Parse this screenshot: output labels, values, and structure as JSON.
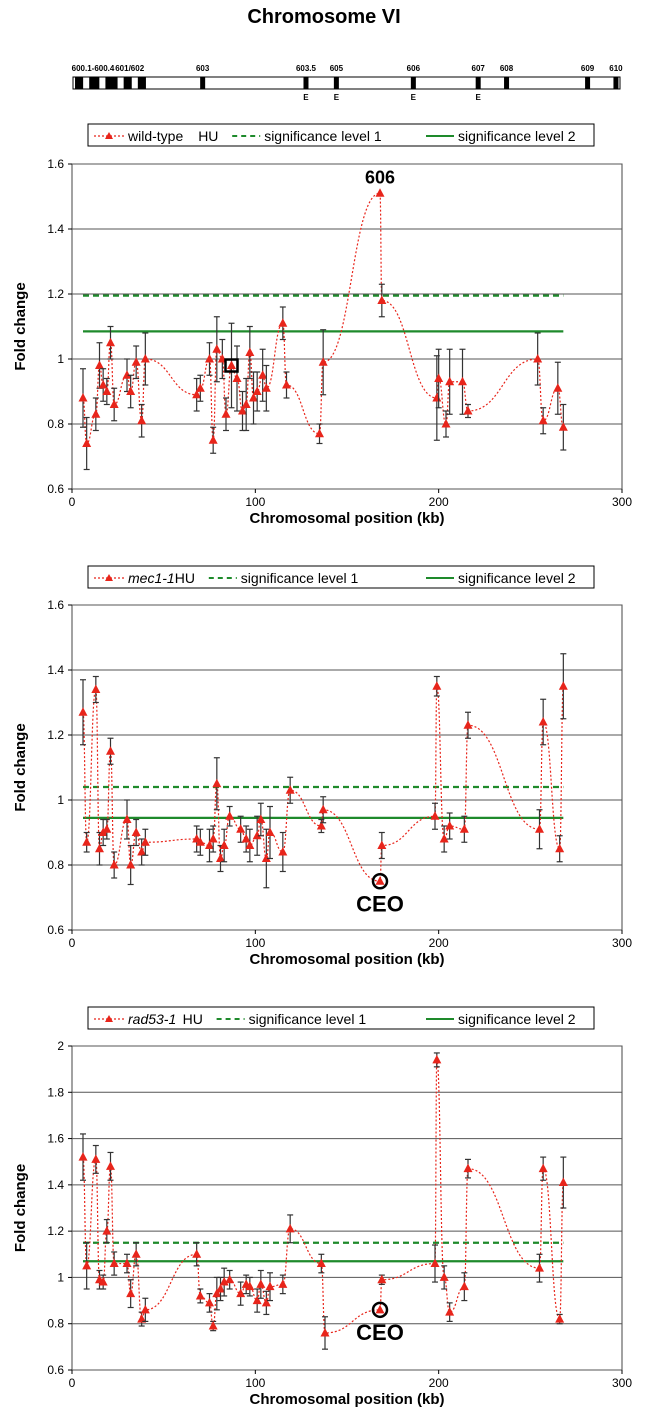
{
  "page": {
    "title": "Chromosome VI"
  },
  "chromosome_map": {
    "origins": [
      {
        "label": "600.1-600.4",
        "pos": 10
      },
      {
        "label": "601/602",
        "pos": 27
      },
      {
        "label": "603",
        "pos": 64
      },
      {
        "label": "603.5",
        "pos": 115,
        "efficient": true
      },
      {
        "label": "605",
        "pos": 130,
        "efficient": true
      },
      {
        "label": "606",
        "pos": 168,
        "efficient": true
      },
      {
        "label": "607",
        "pos": 200,
        "efficient": true
      },
      {
        "label": "608",
        "pos": 214
      },
      {
        "label": "609",
        "pos": 254
      },
      {
        "label": "610",
        "pos": 268
      }
    ],
    "efficient_marker": "E",
    "colors": {
      "block": "#000000",
      "outline": "#000000"
    }
  },
  "chart_data": [
    {
      "type": "scatter",
      "title": "",
      "legend": [
        {
          "name": "wild-type",
          "suffix": " HU",
          "italic": false,
          "style": "dotted-triangle"
        },
        {
          "name": "significance level 1",
          "style": "dashed-green"
        },
        {
          "name": "significance level 2",
          "style": "solid-green"
        }
      ],
      "legend_position": "top",
      "xlabel": "Chromosomal position (kb)",
      "ylabel": "Fold change",
      "xlim": [
        0,
        300
      ],
      "xticks": [
        0,
        100,
        200,
        300
      ],
      "ylim": [
        0.6,
        1.6
      ],
      "yticks": [
        0.6,
        0.8,
        1.0,
        1.2,
        1.4,
        1.6
      ],
      "ytick_labels": [
        "0.6",
        "0.8",
        "1",
        "1.2",
        "1.4",
        "1.6"
      ],
      "grid": "horizontal",
      "significance_level_1": 1.195,
      "significance_level_2": 1.085,
      "sig_x_range": [
        6,
        268
      ],
      "series": [
        {
          "x": 6,
          "y": 0.88,
          "err": 0.09
        },
        {
          "x": 8,
          "y": 0.74,
          "err": 0.08
        },
        {
          "x": 13,
          "y": 0.83,
          "err": 0.05
        },
        {
          "x": 15,
          "y": 0.98,
          "err": 0.07
        },
        {
          "x": 17,
          "y": 0.92,
          "err": 0.05
        },
        {
          "x": 19,
          "y": 0.9,
          "err": 0.04
        },
        {
          "x": 21,
          "y": 1.05,
          "err": 0.05
        },
        {
          "x": 23,
          "y": 0.86,
          "err": 0.05
        },
        {
          "x": 30,
          "y": 0.95,
          "err": 0.05
        },
        {
          "x": 32,
          "y": 0.9,
          "err": 0.05
        },
        {
          "x": 35,
          "y": 0.99,
          "err": 0.05
        },
        {
          "x": 38,
          "y": 0.81,
          "err": 0.05
        },
        {
          "x": 40,
          "y": 1.0,
          "err": 0.08
        },
        {
          "x": 68,
          "y": 0.89,
          "err": 0.05
        },
        {
          "x": 70,
          "y": 0.91,
          "err": 0.04
        },
        {
          "x": 75,
          "y": 1.0,
          "err": 0.05
        },
        {
          "x": 77,
          "y": 0.75,
          "err": 0.04
        },
        {
          "x": 79,
          "y": 1.03,
          "err": 0.1
        },
        {
          "x": 82,
          "y": 1.0,
          "err": 0.06
        },
        {
          "x": 84,
          "y": 0.83,
          "err": 0.05
        },
        {
          "x": 87,
          "y": 0.98,
          "err": 0.13
        },
        {
          "x": 90,
          "y": 0.94,
          "err": 0.1
        },
        {
          "x": 93,
          "y": 0.84,
          "err": 0.06
        },
        {
          "x": 95,
          "y": 0.86,
          "err": 0.08
        },
        {
          "x": 97,
          "y": 1.02,
          "err": 0.08
        },
        {
          "x": 99,
          "y": 0.88,
          "err": 0.08
        },
        {
          "x": 101,
          "y": 0.9,
          "err": 0.06
        },
        {
          "x": 104,
          "y": 0.95,
          "err": 0.08
        },
        {
          "x": 106,
          "y": 0.91,
          "err": 0.07
        },
        {
          "x": 115,
          "y": 1.11,
          "err": 0.05
        },
        {
          "x": 117,
          "y": 0.92,
          "err": 0.04
        },
        {
          "x": 135,
          "y": 0.77,
          "err": 0.03
        },
        {
          "x": 137,
          "y": 0.99,
          "err": 0.1
        },
        {
          "x": 168,
          "y": 1.51,
          "err": 0
        },
        {
          "x": 169,
          "y": 1.18,
          "err": 0.05
        },
        {
          "x": 199,
          "y": 0.88,
          "err": 0.13
        },
        {
          "x": 200,
          "y": 0.94,
          "err": 0.09
        },
        {
          "x": 204,
          "y": 0.8,
          "err": 0.04
        },
        {
          "x": 206,
          "y": 0.93,
          "err": 0.1
        },
        {
          "x": 213,
          "y": 0.93,
          "err": 0.1
        },
        {
          "x": 216,
          "y": 0.84,
          "err": 0.02
        },
        {
          "x": 254,
          "y": 1.0,
          "err": 0.08
        },
        {
          "x": 257,
          "y": 0.81,
          "err": 0.04
        },
        {
          "x": 265,
          "y": 0.91,
          "err": 0.08
        },
        {
          "x": 268,
          "y": 0.79,
          "err": 0.07
        }
      ],
      "annotation": {
        "text": "606",
        "x": 168,
        "y": 1.51,
        "marker": "square",
        "marker_x": 87,
        "marker_y": 0.98
      },
      "colors": {
        "series": "#e8251b",
        "sig": "#1e8a2b",
        "grid": "#555555"
      }
    },
    {
      "type": "scatter",
      "title": "",
      "legend": [
        {
          "name": "mec1-1",
          "suffix": " HU",
          "italic": true,
          "style": "dotted-triangle"
        },
        {
          "name": "significance level 1",
          "style": "dashed-green"
        },
        {
          "name": "significance level 2",
          "style": "solid-green"
        }
      ],
      "legend_position": "top",
      "xlabel": "Chromosomal position (kb)",
      "ylabel": "Fold change",
      "xlim": [
        0,
        300
      ],
      "xticks": [
        0,
        100,
        200,
        300
      ],
      "ylim": [
        0.6,
        1.6
      ],
      "yticks": [
        0.6,
        0.8,
        1.0,
        1.2,
        1.4,
        1.6
      ],
      "ytick_labels": [
        "0.6",
        "0.8",
        "1",
        "1.2",
        "1.4",
        "1.6"
      ],
      "grid": "horizontal",
      "significance_level_1": 1.04,
      "significance_level_2": 0.945,
      "sig_x_range": [
        6,
        268
      ],
      "series": [
        {
          "x": 6,
          "y": 1.27,
          "err": 0.1
        },
        {
          "x": 8,
          "y": 0.87,
          "err": 0.03
        },
        {
          "x": 13,
          "y": 1.34,
          "err": 0.04
        },
        {
          "x": 15,
          "y": 0.85,
          "err": 0.05
        },
        {
          "x": 17,
          "y": 0.9,
          "err": 0.04
        },
        {
          "x": 19,
          "y": 0.91,
          "err": 0.03
        },
        {
          "x": 21,
          "y": 1.15,
          "err": 0.04
        },
        {
          "x": 23,
          "y": 0.8,
          "err": 0.04
        },
        {
          "x": 30,
          "y": 0.94,
          "err": 0.06
        },
        {
          "x": 32,
          "y": 0.8,
          "err": 0.06
        },
        {
          "x": 35,
          "y": 0.9,
          "err": 0.04
        },
        {
          "x": 38,
          "y": 0.84,
          "err": 0.04
        },
        {
          "x": 40,
          "y": 0.87,
          "err": 0.04
        },
        {
          "x": 68,
          "y": 0.88,
          "err": 0.04
        },
        {
          "x": 70,
          "y": 0.87,
          "err": 0.04
        },
        {
          "x": 75,
          "y": 0.86,
          "err": 0.05
        },
        {
          "x": 77,
          "y": 0.88,
          "err": 0.04
        },
        {
          "x": 79,
          "y": 1.05,
          "err": 0.08
        },
        {
          "x": 81,
          "y": 0.82,
          "err": 0.04
        },
        {
          "x": 83,
          "y": 0.86,
          "err": 0.05
        },
        {
          "x": 86,
          "y": 0.95,
          "err": 0.03
        },
        {
          "x": 92,
          "y": 0.91,
          "err": 0.04
        },
        {
          "x": 95,
          "y": 0.88,
          "err": 0.04
        },
        {
          "x": 97,
          "y": 0.86,
          "err": 0.05
        },
        {
          "x": 101,
          "y": 0.89,
          "err": 0.06
        },
        {
          "x": 103,
          "y": 0.94,
          "err": 0.05
        },
        {
          "x": 106,
          "y": 0.82,
          "err": 0.09
        },
        {
          "x": 108,
          "y": 0.9,
          "err": 0.08
        },
        {
          "x": 115,
          "y": 0.84,
          "err": 0.06
        },
        {
          "x": 119,
          "y": 1.03,
          "err": 0.04
        },
        {
          "x": 136,
          "y": 0.92,
          "err": 0.02
        },
        {
          "x": 137,
          "y": 0.97,
          "err": 0.04
        },
        {
          "x": 168,
          "y": 0.75,
          "err": 0
        },
        {
          "x": 169,
          "y": 0.86,
          "err": 0.04
        },
        {
          "x": 198,
          "y": 0.95,
          "err": 0.04
        },
        {
          "x": 199,
          "y": 1.35,
          "err": 0.03
        },
        {
          "x": 203,
          "y": 0.88,
          "err": 0.04
        },
        {
          "x": 206,
          "y": 0.92,
          "err": 0.04
        },
        {
          "x": 214,
          "y": 0.91,
          "err": 0.04
        },
        {
          "x": 216,
          "y": 1.23,
          "err": 0.04
        },
        {
          "x": 255,
          "y": 0.91,
          "err": 0.06
        },
        {
          "x": 257,
          "y": 1.24,
          "err": 0.07
        },
        {
          "x": 266,
          "y": 0.85,
          "err": 0.04
        },
        {
          "x": 268,
          "y": 1.35,
          "err": 0.1
        }
      ],
      "annotation": {
        "text": "CEO",
        "x": 168,
        "y": 0.75,
        "marker": "circle"
      },
      "colors": {
        "series": "#e8251b",
        "sig": "#1e8a2b",
        "grid": "#555555"
      }
    },
    {
      "type": "scatter",
      "title": "",
      "legend": [
        {
          "name": "rad53-1",
          "suffix": " HU",
          "italic": true,
          "style": "dotted-triangle"
        },
        {
          "name": "significance level 1",
          "style": "dashed-green"
        },
        {
          "name": "significance level 2",
          "style": "solid-green"
        }
      ],
      "legend_position": "top",
      "xlabel": "Chromosomal position (kb)",
      "ylabel": "Fold change",
      "xlim": [
        0,
        300
      ],
      "xticks": [
        0,
        100,
        200,
        300
      ],
      "ylim": [
        0.6,
        2.0
      ],
      "yticks": [
        0.6,
        0.8,
        1.0,
        1.2,
        1.4,
        1.6,
        1.8,
        2.0
      ],
      "ytick_labels": [
        "0.6",
        "0.8",
        "1",
        "1.2",
        "1.4",
        "1.6",
        "1.8",
        "2"
      ],
      "grid": "horizontal",
      "significance_level_1": 1.15,
      "significance_level_2": 1.07,
      "sig_x_range": [
        6,
        268
      ],
      "series": [
        {
          "x": 6,
          "y": 1.52,
          "err": 0.1
        },
        {
          "x": 8,
          "y": 1.05,
          "err": 0.1
        },
        {
          "x": 13,
          "y": 1.51,
          "err": 0.06
        },
        {
          "x": 15,
          "y": 0.99,
          "err": 0.04
        },
        {
          "x": 17,
          "y": 0.98,
          "err": 0.03
        },
        {
          "x": 19,
          "y": 1.2,
          "err": 0.05
        },
        {
          "x": 21,
          "y": 1.48,
          "err": 0.06
        },
        {
          "x": 23,
          "y": 1.06,
          "err": 0.05
        },
        {
          "x": 30,
          "y": 1.06,
          "err": 0.04
        },
        {
          "x": 32,
          "y": 0.93,
          "err": 0.06
        },
        {
          "x": 35,
          "y": 1.1,
          "err": 0.05
        },
        {
          "x": 38,
          "y": 0.82,
          "err": 0.03
        },
        {
          "x": 40,
          "y": 0.86,
          "err": 0.05
        },
        {
          "x": 68,
          "y": 1.1,
          "err": 0.05
        },
        {
          "x": 70,
          "y": 0.92,
          "err": 0.03
        },
        {
          "x": 75,
          "y": 0.89,
          "err": 0.04
        },
        {
          "x": 77,
          "y": 0.79,
          "err": 0.02
        },
        {
          "x": 79,
          "y": 0.93,
          "err": 0.07
        },
        {
          "x": 81,
          "y": 0.95,
          "err": 0.05
        },
        {
          "x": 83,
          "y": 0.98,
          "err": 0.06
        },
        {
          "x": 86,
          "y": 0.99,
          "err": 0.04
        },
        {
          "x": 92,
          "y": 0.93,
          "err": 0.05
        },
        {
          "x": 95,
          "y": 0.97,
          "err": 0.04
        },
        {
          "x": 97,
          "y": 0.96,
          "err": 0.04
        },
        {
          "x": 101,
          "y": 0.9,
          "err": 0.05
        },
        {
          "x": 103,
          "y": 0.97,
          "err": 0.06
        },
        {
          "x": 106,
          "y": 0.89,
          "err": 0.05
        },
        {
          "x": 108,
          "y": 0.96,
          "err": 0.06
        },
        {
          "x": 115,
          "y": 0.97,
          "err": 0.04
        },
        {
          "x": 119,
          "y": 1.21,
          "err": 0.06
        },
        {
          "x": 136,
          "y": 1.06,
          "err": 0.04
        },
        {
          "x": 138,
          "y": 0.76,
          "err": 0.07
        },
        {
          "x": 168,
          "y": 0.86,
          "err": 0
        },
        {
          "x": 169,
          "y": 0.99,
          "err": 0.02
        },
        {
          "x": 198,
          "y": 1.06,
          "err": 0.08
        },
        {
          "x": 199,
          "y": 1.94,
          "err": 0.03
        },
        {
          "x": 203,
          "y": 1.0,
          "err": 0.05
        },
        {
          "x": 206,
          "y": 0.85,
          "err": 0.04
        },
        {
          "x": 214,
          "y": 0.96,
          "err": 0.06
        },
        {
          "x": 216,
          "y": 1.47,
          "err": 0.04
        },
        {
          "x": 255,
          "y": 1.04,
          "err": 0.06
        },
        {
          "x": 257,
          "y": 1.47,
          "err": 0.05
        },
        {
          "x": 266,
          "y": 0.82,
          "err": 0.02
        },
        {
          "x": 268,
          "y": 1.41,
          "err": 0.11
        }
      ],
      "annotation": {
        "text": "CEO",
        "x": 168,
        "y": 0.86,
        "marker": "circle"
      },
      "colors": {
        "series": "#e8251b",
        "sig": "#1e8a2b",
        "grid": "#555555"
      }
    }
  ]
}
